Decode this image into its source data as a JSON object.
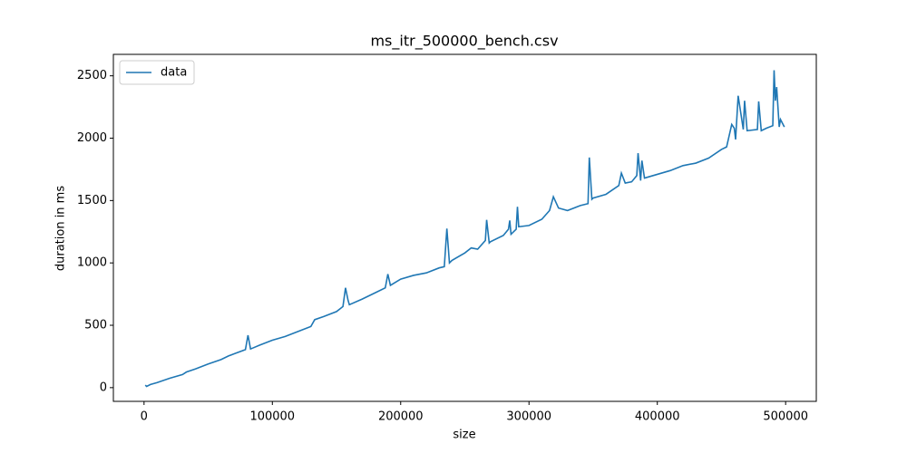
{
  "chart_data": {
    "type": "line",
    "title": "ms_itr_500000_bench.csv",
    "xlabel": "size",
    "ylabel": "duration in ms",
    "x": [
      1000,
      2000,
      5000,
      10000,
      20000,
      30000,
      33000,
      40000,
      50000,
      60000,
      66000,
      70000,
      79000,
      81000,
      83000,
      90000,
      100000,
      110000,
      120000,
      130000,
      133000,
      140000,
      150000,
      155000,
      157000,
      159000,
      160000,
      170000,
      180000,
      188000,
      190000,
      192000,
      200000,
      210000,
      220000,
      230000,
      234000,
      236000,
      238000,
      240000,
      250000,
      255000,
      260000,
      266000,
      267000,
      269000,
      270000,
      280000,
      284000,
      285000,
      286000,
      290000,
      291000,
      292000,
      300000,
      310000,
      316000,
      319000,
      323000,
      330000,
      340000,
      346000,
      347000,
      349000,
      350000,
      360000,
      370000,
      372000,
      375000,
      380000,
      384000,
      385000,
      387000,
      388000,
      390000,
      400000,
      410000,
      420000,
      430000,
      440000,
      450000,
      454000,
      458000,
      460000,
      461000,
      463000,
      467000,
      468000,
      470000,
      478000,
      479000,
      481000,
      485000,
      490000,
      491000,
      492000,
      493000,
      495000,
      496000,
      499000
    ],
    "series": [
      {
        "name": "data",
        "color": "#1f77b4",
        "values": [
          20,
          10,
          25,
          40,
          75,
          105,
          125,
          150,
          190,
          225,
          255,
          270,
          305,
          420,
          310,
          340,
          380,
          410,
          450,
          490,
          545,
          570,
          610,
          650,
          800,
          700,
          665,
          710,
          760,
          800,
          910,
          820,
          870,
          900,
          920,
          960,
          970,
          1275,
          1000,
          1020,
          1080,
          1120,
          1110,
          1180,
          1345,
          1160,
          1170,
          1220,
          1270,
          1340,
          1230,
          1270,
          1450,
          1290,
          1300,
          1350,
          1420,
          1530,
          1440,
          1420,
          1460,
          1475,
          1845,
          1510,
          1520,
          1550,
          1620,
          1720,
          1640,
          1650,
          1700,
          1880,
          1660,
          1820,
          1680,
          1710,
          1740,
          1780,
          1800,
          1840,
          1910,
          1930,
          2110,
          2080,
          1990,
          2340,
          2070,
          2300,
          2060,
          2070,
          2295,
          2060,
          2080,
          2100,
          2545,
          2300,
          2410,
          2090,
          2150,
          2090
        ]
      }
    ],
    "xlim": [
      -23900,
      523900
    ],
    "ylim": [
      -110,
      2672
    ],
    "xticks": [
      0,
      100000,
      200000,
      300000,
      400000,
      500000
    ],
    "yticks": [
      0,
      500,
      1000,
      1500,
      2000,
      2500
    ],
    "legend": "upper left"
  }
}
